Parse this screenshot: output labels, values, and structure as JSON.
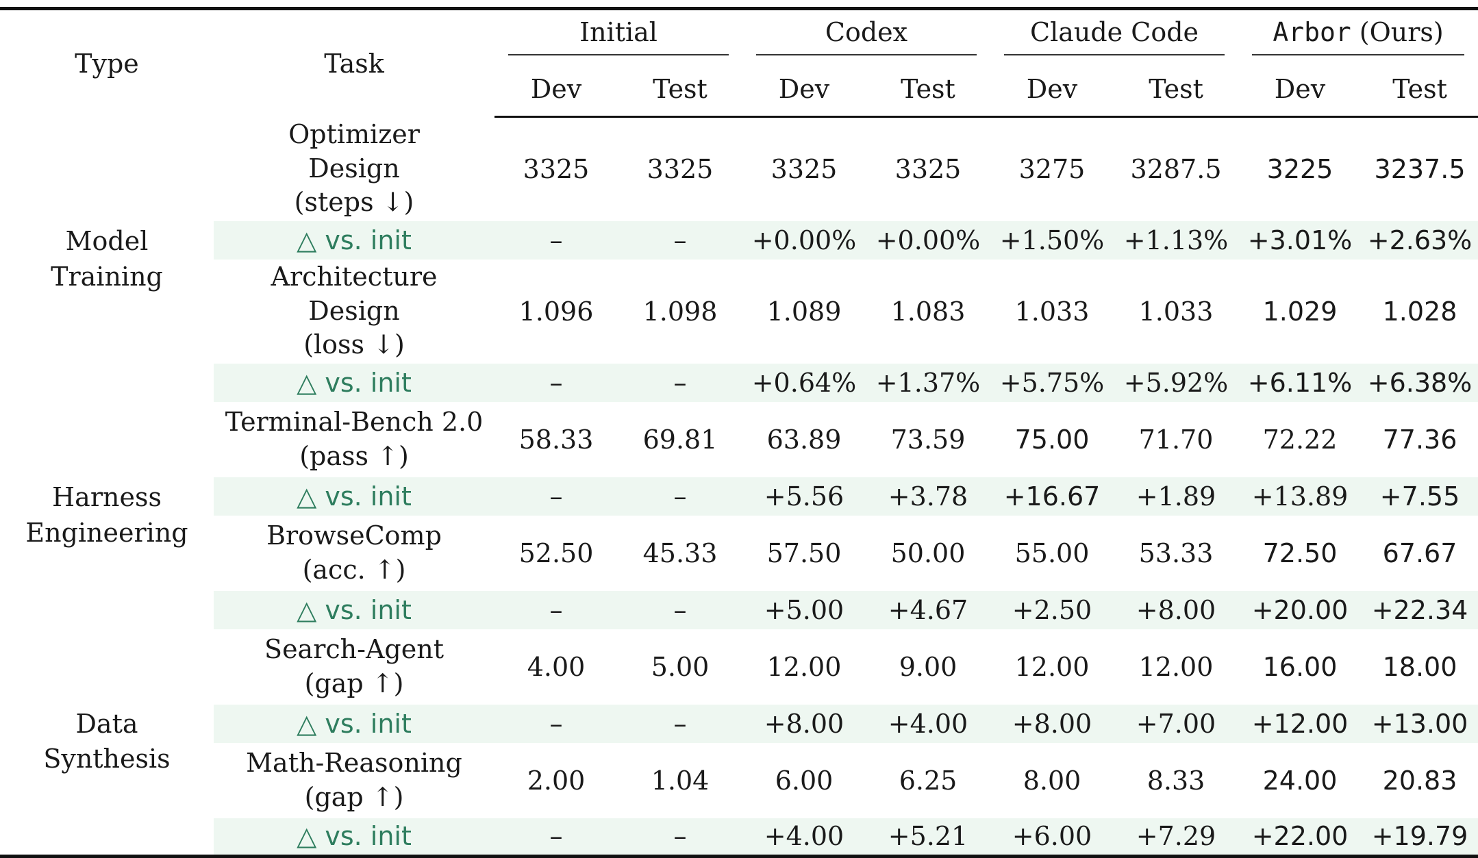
{
  "header": {
    "type": "Type",
    "task": "Task",
    "groups": [
      {
        "name": "Initial",
        "mono": false
      },
      {
        "name": "Codex",
        "mono": false
      },
      {
        "name": "Claude Code",
        "mono": false
      },
      {
        "name": "Arbor",
        "suffix": " (Ours)",
        "mono": true
      }
    ],
    "dev": "Dev",
    "test": "Test"
  },
  "delta_label": "vs. init",
  "delta_symbol": "△",
  "sections": [
    {
      "type": [
        "Model",
        "Training"
      ],
      "tasks": [
        {
          "name": [
            "Optimizer",
            "Design",
            "(steps ↓)"
          ],
          "values": [
            "3325",
            "3325",
            "3325",
            "3325",
            "3275",
            "3287.5",
            "3225",
            "3237.5"
          ],
          "bold": [
            false,
            false,
            false,
            false,
            false,
            false,
            true,
            true
          ],
          "deltas": [
            "–",
            "–",
            "+0.00%",
            "+0.00%",
            "+1.50%",
            "+1.13%",
            "+3.01%",
            "+2.63%"
          ],
          "delta_bold": [
            false,
            false,
            false,
            false,
            false,
            false,
            true,
            true
          ]
        },
        {
          "name": [
            "Architecture",
            "Design",
            "(loss ↓)"
          ],
          "values": [
            "1.096",
            "1.098",
            "1.089",
            "1.083",
            "1.033",
            "1.033",
            "1.029",
            "1.028"
          ],
          "bold": [
            false,
            false,
            false,
            false,
            false,
            false,
            true,
            true
          ],
          "deltas": [
            "–",
            "–",
            "+0.64%",
            "+1.37%",
            "+5.75%",
            "+5.92%",
            "+6.11%",
            "+6.38%"
          ],
          "delta_bold": [
            false,
            false,
            false,
            false,
            false,
            false,
            true,
            true
          ]
        }
      ]
    },
    {
      "type": [
        "Harness",
        "Engineering"
      ],
      "tasks": [
        {
          "name": [
            "Terminal-Bench 2.0",
            "(pass ↑)"
          ],
          "values": [
            "58.33",
            "69.81",
            "63.89",
            "73.59",
            "75.00",
            "71.70",
            "72.22",
            "77.36"
          ],
          "bold": [
            false,
            false,
            false,
            false,
            true,
            false,
            false,
            true
          ],
          "deltas": [
            "–",
            "–",
            "+5.56",
            "+3.78",
            "+16.67",
            "+1.89",
            "+13.89",
            "+7.55"
          ],
          "delta_bold": [
            false,
            false,
            false,
            false,
            true,
            false,
            false,
            true
          ]
        },
        {
          "name": [
            "BrowseComp",
            "(acc. ↑)"
          ],
          "values": [
            "52.50",
            "45.33",
            "57.50",
            "50.00",
            "55.00",
            "53.33",
            "72.50",
            "67.67"
          ],
          "bold": [
            false,
            false,
            false,
            false,
            false,
            false,
            true,
            true
          ],
          "deltas": [
            "–",
            "–",
            "+5.00",
            "+4.67",
            "+2.50",
            "+8.00",
            "+20.00",
            "+22.34"
          ],
          "delta_bold": [
            false,
            false,
            false,
            false,
            false,
            false,
            true,
            true
          ]
        }
      ]
    },
    {
      "type": [
        "Data",
        "Synthesis"
      ],
      "tasks": [
        {
          "name": [
            "Search-Agent",
            "(gap ↑)"
          ],
          "values": [
            "4.00",
            "5.00",
            "12.00",
            "9.00",
            "12.00",
            "12.00",
            "16.00",
            "18.00"
          ],
          "bold": [
            false,
            false,
            false,
            false,
            false,
            false,
            true,
            true
          ],
          "deltas": [
            "–",
            "–",
            "+8.00",
            "+4.00",
            "+8.00",
            "+7.00",
            "+12.00",
            "+13.00"
          ],
          "delta_bold": [
            false,
            false,
            false,
            false,
            false,
            false,
            true,
            true
          ]
        },
        {
          "name": [
            "Math-Reasoning",
            "(gap ↑)"
          ],
          "values": [
            "2.00",
            "1.04",
            "6.00",
            "6.25",
            "8.00",
            "8.33",
            "24.00",
            "20.83"
          ],
          "bold": [
            false,
            false,
            false,
            false,
            false,
            false,
            true,
            true
          ],
          "deltas": [
            "–",
            "–",
            "+4.00",
            "+5.21",
            "+6.00",
            "+7.29",
            "+22.00",
            "+19.79"
          ],
          "delta_bold": [
            false,
            false,
            false,
            false,
            false,
            false,
            true,
            true
          ]
        }
      ]
    }
  ]
}
